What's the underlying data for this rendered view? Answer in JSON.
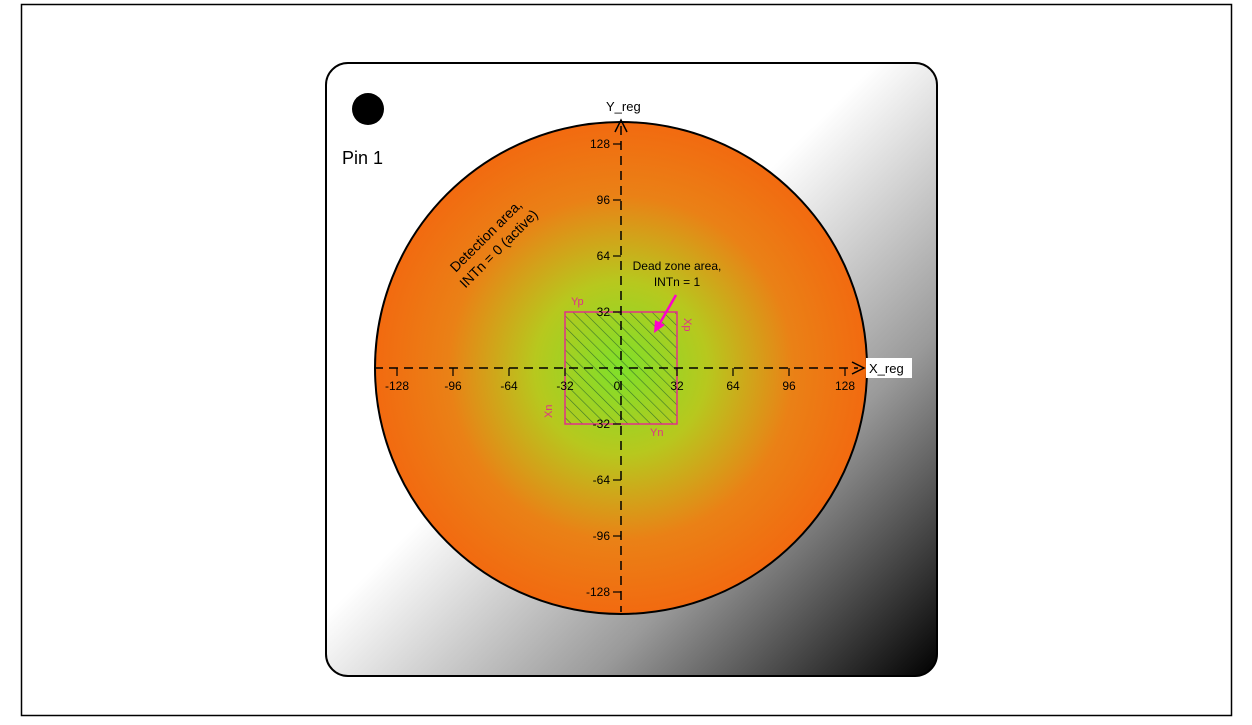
{
  "pin_label": "Pin 1",
  "y_axis_label": "Y_reg",
  "x_axis_label": "X_reg",
  "x_ticks": [
    "-128",
    "-96",
    "-64",
    "-32",
    "0",
    "32",
    "64",
    "96",
    "128"
  ],
  "y_ticks": [
    "128",
    "96",
    "64",
    "32",
    "0",
    "-32",
    "-64",
    "-96",
    "-128"
  ],
  "detection_area": {
    "line1": "Detection area,",
    "line2": "INTn = 0 (active)"
  },
  "dead_zone": {
    "line1": "Dead zone area,",
    "line2": "INTn = 1"
  },
  "dead_zone_edges": {
    "yp": "Yp",
    "yn": "Yn",
    "xp": "Xp",
    "xn": "Xn"
  },
  "colors": {
    "detection_outer": "#f06a12",
    "dead_zone_center": "#7fe02a",
    "dead_zone_label": "#e0308a",
    "arrow": "#ff00cc"
  }
}
